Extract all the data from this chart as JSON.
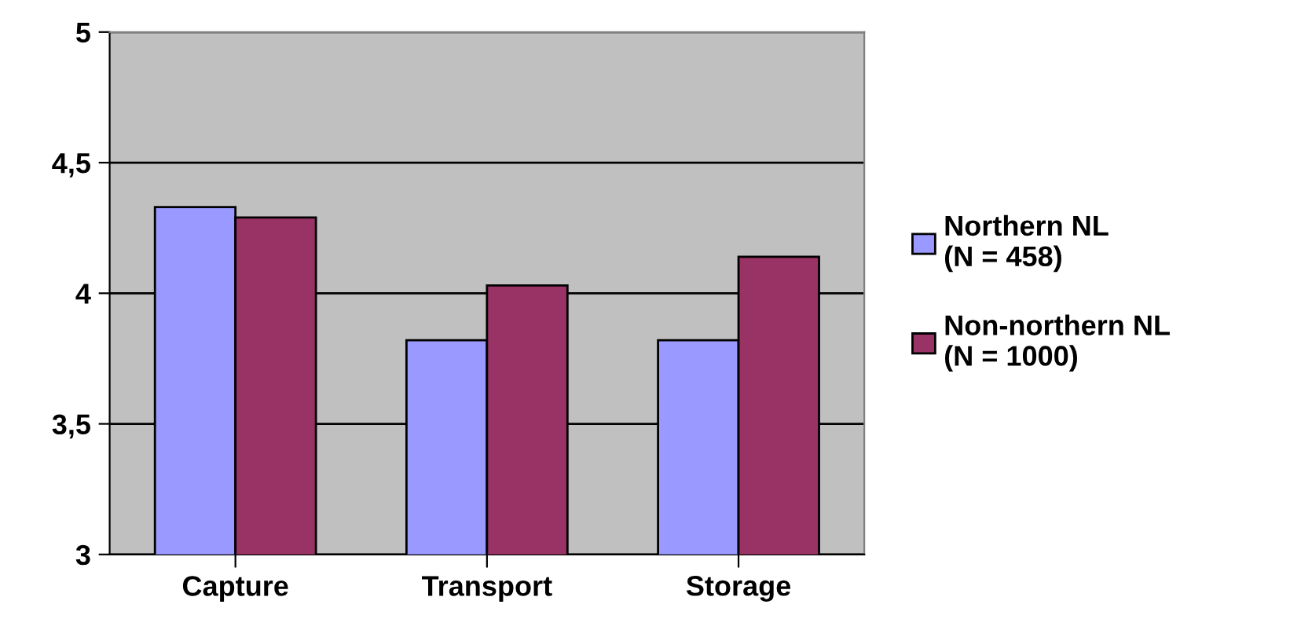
{
  "chart_data": {
    "type": "bar",
    "categories": [
      "Capture",
      "Transport",
      "Storage"
    ],
    "series": [
      {
        "name": "Northern NL\n(N = 458)",
        "color": "#9999ff",
        "values": [
          4.33,
          3.82,
          3.82
        ]
      },
      {
        "name": "Non-northern NL\n(N = 1000)",
        "color": "#993366",
        "values": [
          4.29,
          4.03,
          4.14
        ]
      }
    ],
    "ylim": [
      3,
      5
    ],
    "yticks": [
      3,
      {
        "value": 3.5,
        "label": "3,5"
      },
      4,
      {
        "value": 4.5,
        "label": "4,5"
      },
      5
    ],
    "grid": "y",
    "legend": "right"
  }
}
